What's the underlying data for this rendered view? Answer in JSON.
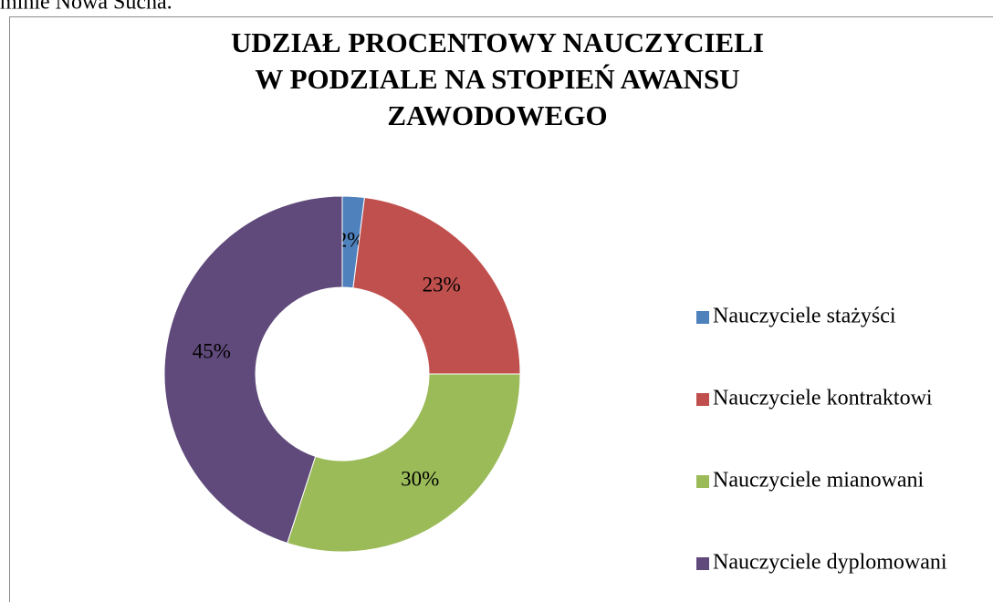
{
  "page_text": "minie Nowa Sucha.",
  "chart_data": {
    "type": "donut",
    "title": [
      "UDZIAŁ PROCENTOWY NAUCZYCIELI",
      "W PODZIALE NA STOPIEŃ AWANSU",
      "ZAWODOWEGO"
    ],
    "categories": [
      "Nauczyciele stażyści",
      "Nauczyciele kontraktowi",
      "Nauczyciele mianowani",
      "Nauczyciele dyplomowani"
    ],
    "values": [
      2,
      23,
      30,
      45
    ],
    "value_labels": [
      "2%",
      "23%",
      "30%",
      "45%"
    ],
    "colors": [
      "#4f81bd",
      "#c0504d",
      "#9bbb59",
      "#604a7b"
    ],
    "legend": "right"
  }
}
